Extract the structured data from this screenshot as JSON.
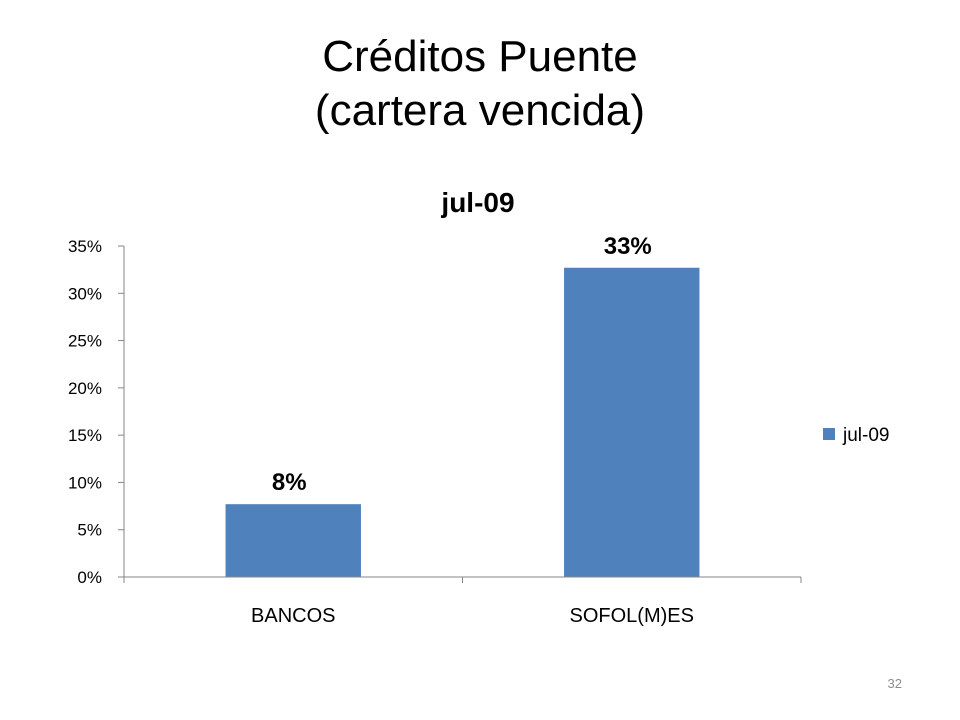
{
  "slide": {
    "title_line1": "Créditos Puente",
    "title_line2": "(cartera vencida)",
    "page_number": "32"
  },
  "chart_data": {
    "type": "bar",
    "title": "jul-09",
    "categories": [
      "BANCOS",
      "SOFOL(M)ES"
    ],
    "series": [
      {
        "name": "jul-09",
        "values": [
          7.7,
          32.7
        ],
        "data_labels": [
          "8%",
          "33%"
        ]
      }
    ],
    "ylim": [
      0,
      35
    ],
    "yticks": [
      0,
      5,
      10,
      15,
      20,
      25,
      30,
      35
    ],
    "ytick_labels": [
      "0%",
      "5%",
      "10%",
      "15%",
      "20%",
      "25%",
      "30%",
      "35%"
    ],
    "xlabel": "",
    "ylabel": "",
    "grid": false,
    "legend": "right",
    "colors": {
      "bar": "#4f81bd",
      "axis": "#868686"
    }
  }
}
